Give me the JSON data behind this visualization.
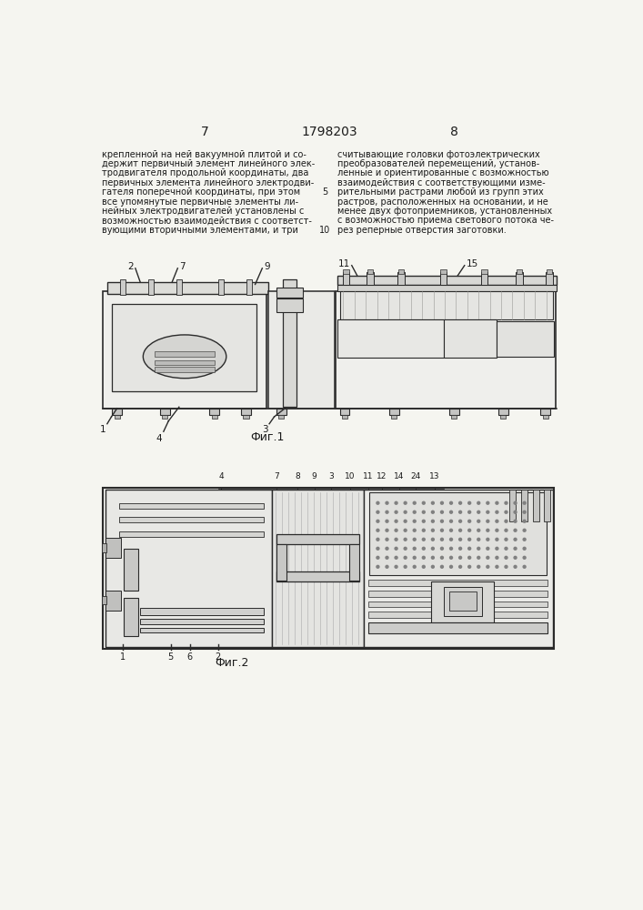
{
  "page_left": "7",
  "page_center": "1798203",
  "page_right": "8",
  "left_col_text": [
    "крепленной на ней вакуумной плитой и со-",
    "держит первичный элемент линейного элек-",
    "тродвигателя продольной координаты, два",
    "первичных элемента линейного электродви-",
    "гателя поперечной координаты, при этом",
    "все упомянутые первичные элементы ли-",
    "нейных электродвигателей установлены с",
    "возможностью взаимодействия с соответст-",
    "вующими вторичными элементами, и три"
  ],
  "right_col_text": [
    "считывающие головки фотоэлектрических",
    "преобразователей перемещений, установ-",
    "ленные и ориентированные с возможностью",
    "взаимодействия с соответствующими изме-",
    "рительными растрами любой из групп этих",
    "растров, расположенных на основании, и не",
    "менее двух фотоприемников, установленных",
    "с возможностью приема светового потока че-",
    "рез реперные отверстия заготовки."
  ],
  "line_number_left": "5",
  "line_number_right": "10",
  "fig1_label": "Фиг.1",
  "fig2_label": "Фиг.2",
  "bg_color": "#f5f5f0",
  "text_color": "#1a1a1a",
  "line_color": "#2a2a2a"
}
